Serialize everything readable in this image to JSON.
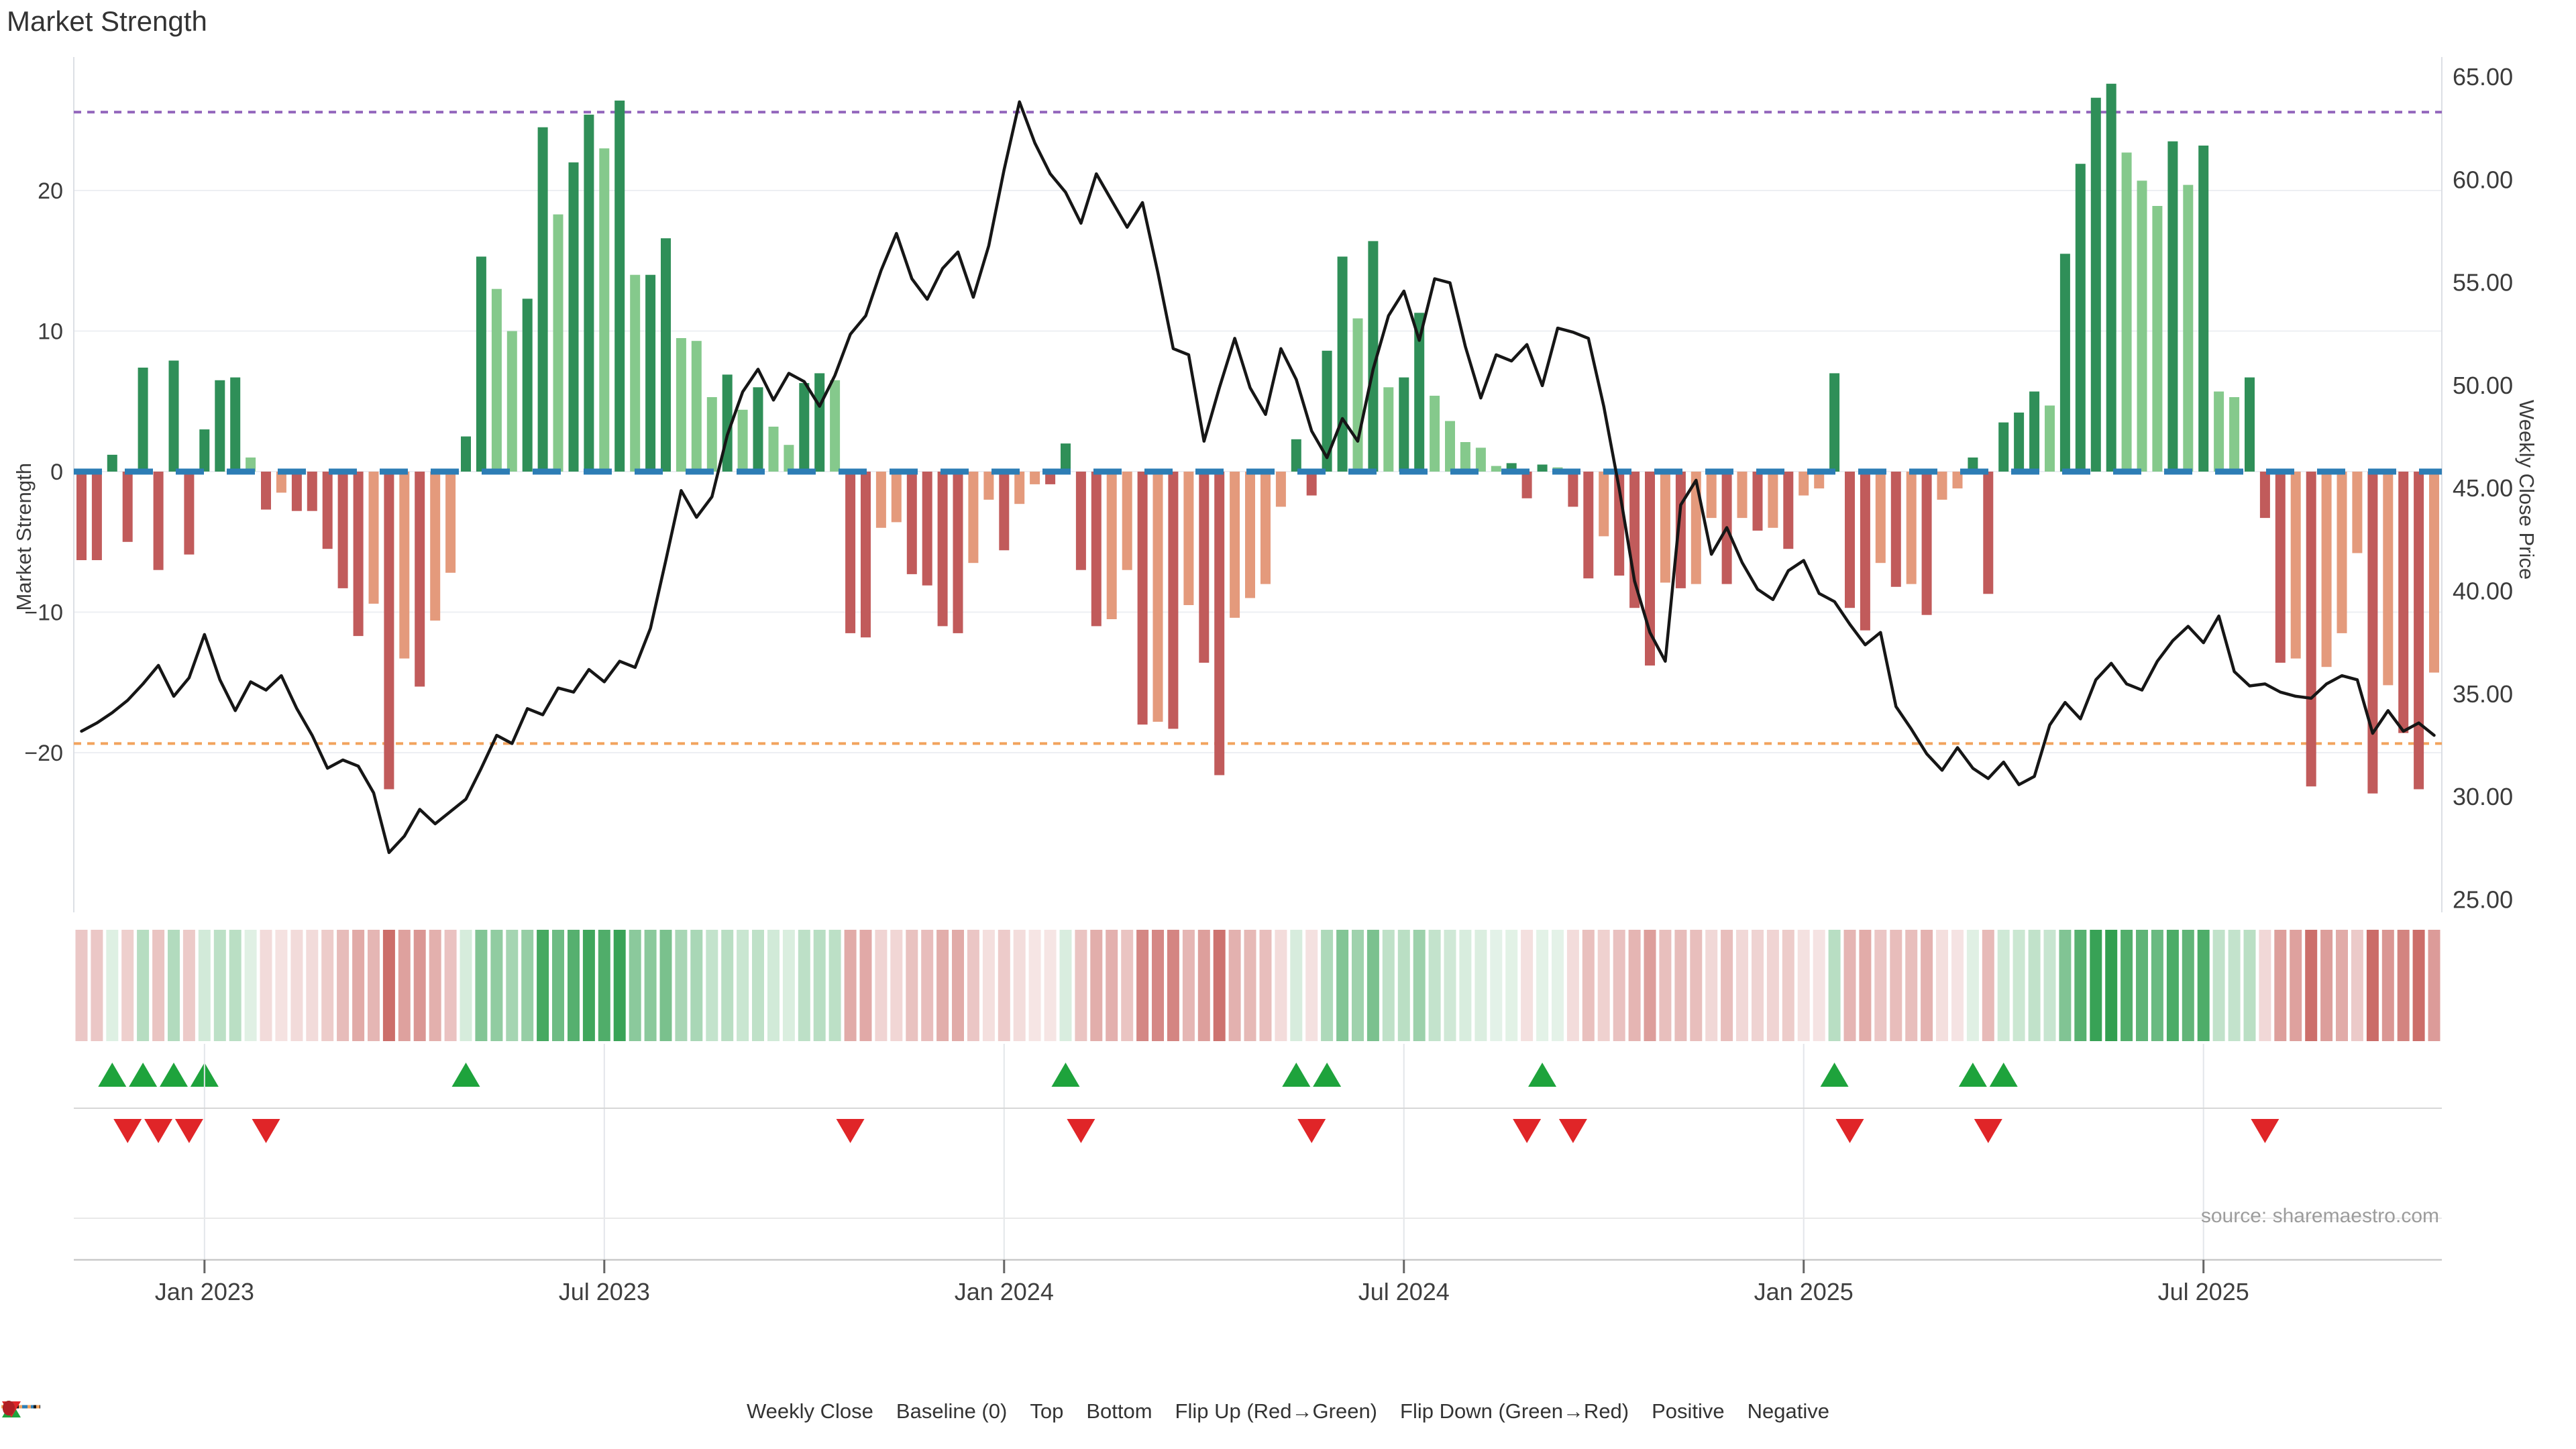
{
  "title": "Market Strength",
  "source": "source: sharemaestro.com",
  "axes": {
    "left_title": "Market Strength",
    "right_title": "Weekly Close Price",
    "left_ticks": [
      "20",
      "10",
      "0",
      "−10",
      "−20"
    ],
    "left_tick_values": [
      20,
      10,
      0,
      -10,
      -20
    ],
    "right_ticks": [
      "65.00",
      "60.00",
      "55.00",
      "50.00",
      "45.00",
      "40.00",
      "35.00",
      "30.00",
      "25.00"
    ],
    "right_tick_values": [
      65,
      60,
      55,
      50,
      45,
      40,
      35,
      30,
      25
    ],
    "x_ticks": [
      {
        "label": "Jan 2023",
        "week": 8
      },
      {
        "label": "Jul 2023",
        "week": 34
      },
      {
        "label": "Jan 2024",
        "week": 60
      },
      {
        "label": "Jul 2024",
        "week": 86
      },
      {
        "label": "Jan 2025",
        "week": 112
      },
      {
        "label": "Jul 2025",
        "week": 138
      }
    ]
  },
  "legend": [
    {
      "label": "Weekly Close",
      "type": "line"
    },
    {
      "label": "Baseline (0)",
      "type": "dashed"
    },
    {
      "label": "Top",
      "type": "dotted-purple"
    },
    {
      "label": "Bottom",
      "type": "dotted-orange"
    },
    {
      "label": "Flip Up (Red→Green)",
      "type": "triangle-up"
    },
    {
      "label": "Flip Down (Green→Red)",
      "type": "triangle-down"
    },
    {
      "label": "Positive",
      "type": "dot-green"
    },
    {
      "label": "Negative",
      "type": "dot-red"
    }
  ],
  "colors": {
    "dark_green": "#2f8f58",
    "light_green": "#85c98c",
    "dark_red": "#c15b5b",
    "salmon": "#e49a7c",
    "price_line": "#161616",
    "baseline": "#2d7db5",
    "top_line": "#9467bd",
    "bottom_line": "#f2a35e",
    "flip_up": "#1ea33c",
    "flip_down": "#e02528",
    "positive_dot": "#12962f",
    "negative_dot": "#b01f24",
    "heat_green": "#2f9e4e",
    "heat_red": "#c1504b",
    "grid": "#edeff3",
    "spine": "#dcdfe5"
  },
  "chart_data": {
    "type": "bar+line",
    "title": "Market Strength",
    "x_unit": "week",
    "start_week": "2022-11-07",
    "weeks": 154,
    "ylabel_left": "Market Strength",
    "ylabel_right": "Weekly Close Price",
    "ylim_left": [
      -30.4,
      28.1
    ],
    "ylim_right": [
      25,
      65
    ],
    "baseline": 0,
    "top_line_price": 63.3,
    "bottom_line_price": 32.6,
    "legend_note": "bar shade: dark=momentum in bar direction, light=fading; flips derived from sign change",
    "strength": [
      -6.3,
      -6.3,
      1.2,
      -5,
      7.4,
      -7,
      7.9,
      -5.9,
      3,
      6.5,
      6.7,
      1,
      -2.7,
      -1.5,
      -2.8,
      -2.8,
      -5.5,
      -8.3,
      -11.7,
      -9.4,
      -22.6,
      -13.3,
      -15.3,
      -10.6,
      -7.2,
      2.5,
      15.3,
      13,
      10,
      12.3,
      24.5,
      18.3,
      22,
      25.4,
      23,
      26.4,
      14,
      14,
      16.6,
      9.5,
      9.3,
      5.3,
      6.9,
      4.4,
      6,
      3.2,
      1.9,
      6.3,
      7,
      6.5,
      -11.5,
      -11.8,
      -4,
      -3.6,
      -7.3,
      -8.1,
      -11,
      -11.5,
      -6.5,
      -2,
      -5.6,
      -2.3,
      -0.9,
      -0.9,
      2,
      -7,
      -11,
      -10.5,
      -7,
      -18,
      -17.8,
      -18.3,
      -9.5,
      -13.6,
      -21.6,
      -10.4,
      -9,
      -8,
      -2.5,
      2.3,
      -1.7,
      8.6,
      15.3,
      10.9,
      16.4,
      6,
      6.7,
      11.3,
      5.4,
      3.6,
      2.1,
      1.7,
      0.4,
      0.6,
      -1.9,
      0.5,
      0.3,
      -2.5,
      -7.6,
      -4.6,
      -7.4,
      -9.7,
      -13.8,
      -7.9,
      -8.3,
      -8,
      -3.3,
      -8,
      -3.3,
      -4.2,
      -4,
      -5.5,
      -1.7,
      -1.2,
      7,
      -9.7,
      -11.3,
      -6.5,
      -8.2,
      -8,
      -10.2,
      -2,
      -1.2,
      1,
      -8.7,
      3.5,
      4.2,
      5.7,
      4.7,
      15.5,
      21.9,
      26.6,
      27.6,
      22.7,
      20.7,
      18.9,
      23.5,
      20.4,
      23.2,
      5.7,
      5.3,
      6.7,
      -3.3,
      -13.6,
      -13.3,
      -22.4,
      -13.9,
      -11.5,
      -5.8,
      -22.9,
      -15.2,
      -18.6,
      -22.6,
      -14.3
    ],
    "price": [
      33.2,
      33.6,
      34.1,
      34.7,
      35.5,
      36.4,
      34.9,
      35.8,
      37.9,
      35.7,
      34.2,
      35.6,
      35.2,
      35.9,
      34.3,
      33.0,
      31.4,
      31.8,
      31.5,
      30.2,
      27.3,
      28.1,
      29.4,
      28.7,
      29.3,
      29.9,
      31.4,
      33.0,
      32.6,
      34.3,
      34.0,
      35.3,
      35.1,
      36.2,
      35.6,
      36.6,
      36.3,
      38.2,
      41.5,
      44.9,
      43.6,
      44.6,
      47.6,
      49.7,
      50.8,
      49.3,
      50.6,
      50.2,
      49.0,
      50.5,
      52.5,
      53.4,
      55.6,
      57.4,
      55.2,
      54.2,
      55.7,
      56.5,
      54.3,
      56.8,
      60.5,
      63.8,
      61.8,
      60.3,
      59.4,
      57.9,
      60.3,
      59.0,
      57.7,
      58.9,
      55.5,
      51.8,
      51.5,
      47.3,
      49.9,
      52.3,
      49.9,
      48.6,
      51.8,
      50.3,
      47.8,
      46.5,
      48.4,
      47.3,
      50.8,
      53.4,
      54.6,
      52.2,
      55.2,
      55.0,
      51.9,
      49.4,
      51.5,
      51.2,
      52.0,
      50.0,
      52.8,
      52.6,
      52.3,
      49.0,
      45.0,
      40.5,
      38.0,
      36.6,
      44.2,
      45.4,
      41.8,
      43.1,
      41.4,
      40.1,
      39.6,
      41.0,
      41.5,
      39.9,
      39.5,
      38.4,
      37.4,
      38.0,
      34.4,
      33.3,
      32.1,
      31.3,
      32.4,
      31.4,
      30.9,
      31.7,
      30.6,
      31.0,
      33.5,
      34.6,
      33.8,
      35.7,
      36.5,
      35.5,
      35.2,
      36.6,
      37.6,
      38.3,
      37.5,
      38.8,
      36.1,
      35.4,
      35.5,
      35.1,
      34.9,
      34.8,
      35.5,
      35.9,
      35.7,
      33.1,
      34.2,
      33.2,
      33.6,
      33.0
    ]
  }
}
